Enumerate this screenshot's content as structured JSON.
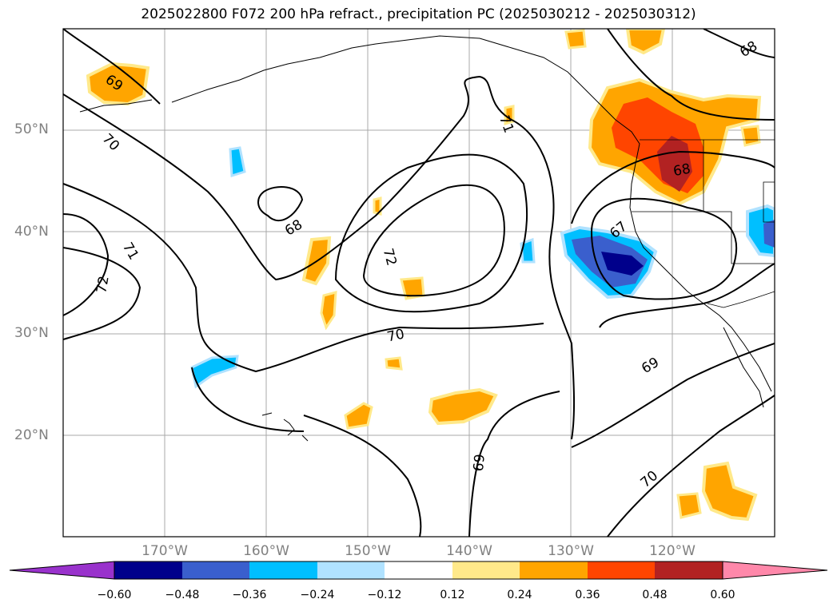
{
  "title": "2025022800 F072 200 hPa refract., precipitation PC (2025030212 - 2025030312)",
  "map": {
    "lat_labels": [
      "50°N",
      "40°N",
      "30°N",
      "20°N"
    ],
    "lon_labels": [
      "170°W",
      "160°W",
      "150°W",
      "140°W",
      "130°W",
      "120°W"
    ],
    "contour_labels": [
      "69",
      "70",
      "71",
      "72",
      "68",
      "72",
      "71",
      "70",
      "69",
      "67",
      "68",
      "68",
      "69",
      "70"
    ]
  },
  "colorbar": {
    "tick_labels": [
      "−0.60",
      "−0.48",
      "−0.36",
      "−0.24",
      "−0.12",
      "0.12",
      "0.24",
      "0.36",
      "0.48",
      "0.60"
    ],
    "colors": [
      "#9932cc",
      "#00008b",
      "#3a5fcd",
      "#00bfff",
      "#b0e2ff",
      "#ffffff",
      "#ffe98a",
      "#ffa500",
      "#ff4500",
      "#b22222",
      "#ff88aa"
    ]
  }
}
